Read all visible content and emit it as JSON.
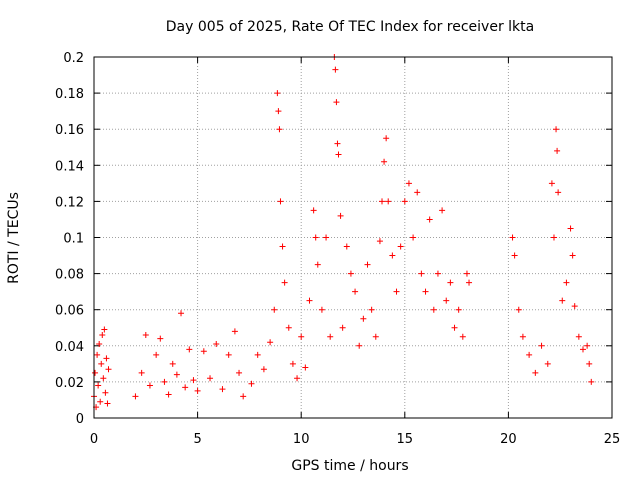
{
  "chart_data": {
    "type": "scatter",
    "title": "Day 005 of 2025, Rate Of TEC Index for receiver lkta",
    "xlabel": "GPS time / hours",
    "ylabel": "ROTI / TECUs",
    "xlim": [
      0,
      25
    ],
    "ylim": [
      0,
      0.2
    ],
    "x_ticks": [
      "0",
      "5",
      "10",
      "15",
      "20",
      "25"
    ],
    "y_ticks": [
      "0",
      "0.02",
      "0.04",
      "0.06",
      "0.08",
      "0.1",
      "0.12",
      "0.14",
      "0.16",
      "0.18",
      "0.2"
    ],
    "grid": true,
    "marker": "+",
    "color": "#ff0000",
    "series": [
      {
        "points": [
          [
            0.0,
            0.012
          ],
          [
            0.05,
            0.025
          ],
          [
            0.1,
            0.006
          ],
          [
            0.15,
            0.035
          ],
          [
            0.2,
            0.018
          ],
          [
            0.25,
            0.041
          ],
          [
            0.3,
            0.009
          ],
          [
            0.35,
            0.03
          ],
          [
            0.4,
            0.046
          ],
          [
            0.45,
            0.022
          ],
          [
            0.5,
            0.049
          ],
          [
            0.55,
            0.014
          ],
          [
            0.6,
            0.033
          ],
          [
            0.65,
            0.008
          ],
          [
            0.7,
            0.027
          ],
          [
            2.0,
            0.012
          ],
          [
            2.3,
            0.025
          ],
          [
            2.5,
            0.046
          ],
          [
            2.7,
            0.018
          ],
          [
            3.0,
            0.035
          ],
          [
            3.2,
            0.044
          ],
          [
            3.4,
            0.02
          ],
          [
            3.6,
            0.013
          ],
          [
            3.8,
            0.03
          ],
          [
            4.0,
            0.024
          ],
          [
            4.2,
            0.058
          ],
          [
            4.4,
            0.017
          ],
          [
            4.6,
            0.038
          ],
          [
            4.8,
            0.021
          ],
          [
            5.0,
            0.015
          ],
          [
            5.3,
            0.037
          ],
          [
            5.6,
            0.022
          ],
          [
            5.9,
            0.041
          ],
          [
            6.2,
            0.016
          ],
          [
            6.5,
            0.035
          ],
          [
            6.8,
            0.048
          ],
          [
            7.0,
            0.025
          ],
          [
            7.2,
            0.012
          ],
          [
            7.6,
            0.019
          ],
          [
            7.9,
            0.035
          ],
          [
            8.2,
            0.027
          ],
          [
            8.5,
            0.042
          ],
          [
            8.7,
            0.06
          ],
          [
            8.85,
            0.18
          ],
          [
            8.9,
            0.17
          ],
          [
            8.95,
            0.16
          ],
          [
            9.0,
            0.12
          ],
          [
            9.1,
            0.095
          ],
          [
            9.2,
            0.075
          ],
          [
            9.4,
            0.05
          ],
          [
            9.6,
            0.03
          ],
          [
            9.8,
            0.022
          ],
          [
            10.0,
            0.045
          ],
          [
            10.2,
            0.028
          ],
          [
            10.4,
            0.065
          ],
          [
            10.6,
            0.115
          ],
          [
            10.7,
            0.1
          ],
          [
            10.8,
            0.085
          ],
          [
            11.0,
            0.06
          ],
          [
            11.2,
            0.1
          ],
          [
            11.4,
            0.045
          ],
          [
            11.6,
            0.2
          ],
          [
            11.65,
            0.193
          ],
          [
            11.7,
            0.175
          ],
          [
            11.75,
            0.152
          ],
          [
            11.8,
            0.146
          ],
          [
            11.9,
            0.112
          ],
          [
            12.0,
            0.05
          ],
          [
            12.2,
            0.095
          ],
          [
            12.4,
            0.08
          ],
          [
            12.6,
            0.07
          ],
          [
            12.8,
            0.04
          ],
          [
            13.0,
            0.055
          ],
          [
            13.2,
            0.085
          ],
          [
            13.4,
            0.06
          ],
          [
            13.6,
            0.045
          ],
          [
            13.8,
            0.098
          ],
          [
            13.9,
            0.12
          ],
          [
            14.0,
            0.142
          ],
          [
            14.1,
            0.155
          ],
          [
            14.2,
            0.12
          ],
          [
            14.4,
            0.09
          ],
          [
            14.6,
            0.07
          ],
          [
            14.8,
            0.095
          ],
          [
            15.0,
            0.12
          ],
          [
            15.2,
            0.13
          ],
          [
            15.4,
            0.1
          ],
          [
            15.6,
            0.125
          ],
          [
            15.8,
            0.08
          ],
          [
            16.0,
            0.07
          ],
          [
            16.2,
            0.11
          ],
          [
            16.4,
            0.06
          ],
          [
            16.6,
            0.08
          ],
          [
            16.8,
            0.115
          ],
          [
            17.0,
            0.065
          ],
          [
            17.2,
            0.075
          ],
          [
            17.4,
            0.05
          ],
          [
            17.6,
            0.06
          ],
          [
            17.8,
            0.045
          ],
          [
            18.0,
            0.08
          ],
          [
            18.1,
            0.075
          ],
          [
            20.2,
            0.1
          ],
          [
            20.3,
            0.09
          ],
          [
            20.5,
            0.06
          ],
          [
            20.7,
            0.045
          ],
          [
            21.0,
            0.035
          ],
          [
            21.3,
            0.025
          ],
          [
            21.6,
            0.04
          ],
          [
            21.9,
            0.03
          ],
          [
            22.1,
            0.13
          ],
          [
            22.2,
            0.1
          ],
          [
            22.3,
            0.16
          ],
          [
            22.35,
            0.148
          ],
          [
            22.4,
            0.125
          ],
          [
            22.6,
            0.065
          ],
          [
            22.8,
            0.075
          ],
          [
            23.0,
            0.105
          ],
          [
            23.1,
            0.09
          ],
          [
            23.2,
            0.062
          ],
          [
            23.4,
            0.045
          ],
          [
            23.6,
            0.038
          ],
          [
            23.8,
            0.04
          ],
          [
            23.9,
            0.03
          ],
          [
            24.0,
            0.02
          ]
        ]
      }
    ]
  }
}
